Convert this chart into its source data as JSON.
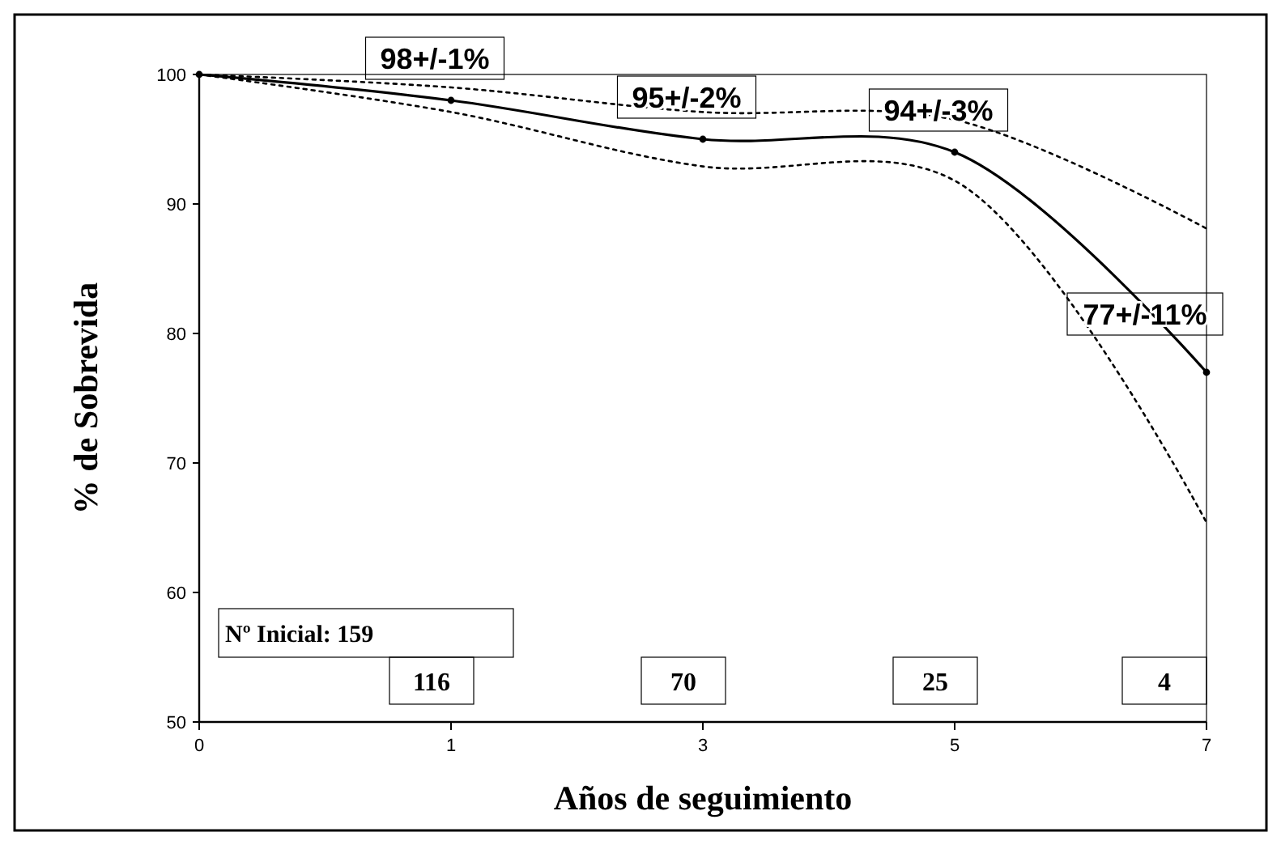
{
  "chart_data": {
    "type": "line",
    "xlabel": "Años de seguimiento",
    "ylabel": "% de Sobrevida",
    "categories": [
      "0",
      "1",
      "3",
      "5",
      "7"
    ],
    "series": [
      {
        "color": "#000000",
        "values": [
          100,
          98,
          95,
          94,
          77
        ],
        "marker": "circle",
        "line_style": "solid"
      },
      {
        "color": "#000000",
        "values": [
          100,
          99,
          97.1,
          96.5,
          88.1
        ],
        "marker": "none",
        "line_style": "dotted"
      },
      {
        "color": "#000000",
        "values": [
          100,
          97.1,
          92.9,
          91.8,
          65.4
        ],
        "marker": "none",
        "line_style": "dotted"
      }
    ],
    "ylim": [
      50,
      100
    ],
    "yticks": [
      50,
      60,
      70,
      80,
      90,
      100
    ],
    "grid": false,
    "annotations": [
      {
        "text": "98+/-1%",
        "x": "1",
        "y": 98
      },
      {
        "text": "95+/-2%",
        "x": "3",
        "y": 95
      },
      {
        "text": "94+/-3%",
        "x": "5",
        "y": 94
      },
      {
        "text": "77+/-11%",
        "x": "7",
        "y": 77
      },
      "Nº Inicial: 159",
      "116",
      "70",
      "25",
      "4"
    ]
  }
}
